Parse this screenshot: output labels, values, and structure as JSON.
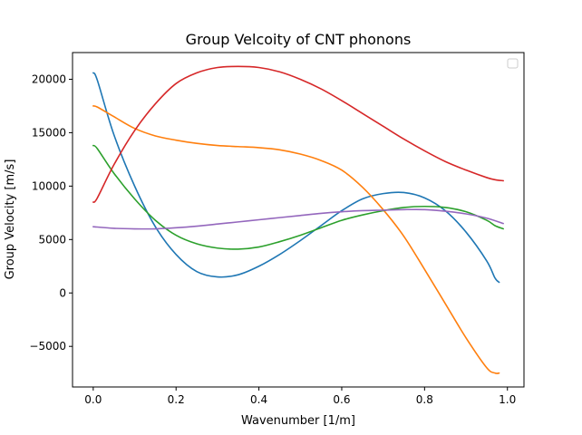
{
  "chart_data": {
    "type": "line",
    "title": "Group Velcoity of CNT phonons",
    "xlabel": "Wavenumber [1/m]",
    "ylabel": "Group Velocity [m/s]",
    "xlim": [
      -0.05,
      1.04
    ],
    "ylim": [
      -8800,
      22500
    ],
    "xticks": [
      0.0,
      0.2,
      0.4,
      0.6,
      0.8,
      1.0
    ],
    "xtick_labels": [
      "0.0",
      "0.2",
      "0.4",
      "0.6",
      "0.8",
      "1.0"
    ],
    "yticks": [
      -5000,
      0,
      5000,
      10000,
      15000,
      20000
    ],
    "ytick_labels": [
      "−5000",
      "0",
      "5000",
      "10000",
      "15000",
      "20000"
    ],
    "grid": false,
    "legend": {
      "placement": "top-right",
      "entries": []
    },
    "series": [
      {
        "color": "#1f77b4",
        "x": [
          0.0,
          0.01,
          0.05,
          0.1,
          0.15,
          0.2,
          0.25,
          0.3,
          0.35,
          0.4,
          0.45,
          0.5,
          0.55,
          0.6,
          0.65,
          0.7,
          0.75,
          0.8,
          0.85,
          0.9,
          0.95,
          0.97,
          0.98
        ],
        "y": [
          20600,
          19900,
          14800,
          10000,
          6200,
          3600,
          2000,
          1500,
          1700,
          2500,
          3600,
          4900,
          6300,
          7700,
          8800,
          9300,
          9400,
          8900,
          7700,
          5700,
          3000,
          1400,
          1000
        ]
      },
      {
        "color": "#ff7f0e",
        "x": [
          0.0,
          0.01,
          0.05,
          0.1,
          0.15,
          0.2,
          0.25,
          0.3,
          0.35,
          0.4,
          0.45,
          0.5,
          0.55,
          0.6,
          0.65,
          0.7,
          0.75,
          0.8,
          0.85,
          0.9,
          0.95,
          0.97,
          0.98
        ],
        "y": [
          17500,
          17400,
          16500,
          15400,
          14700,
          14300,
          14000,
          13800,
          13700,
          13600,
          13400,
          13000,
          12400,
          11500,
          9900,
          7800,
          5300,
          2200,
          -1000,
          -4200,
          -7000,
          -7500,
          -7500
        ]
      },
      {
        "color": "#2ca02c",
        "x": [
          0.0,
          0.01,
          0.05,
          0.1,
          0.15,
          0.2,
          0.25,
          0.3,
          0.35,
          0.4,
          0.45,
          0.5,
          0.55,
          0.6,
          0.65,
          0.7,
          0.75,
          0.8,
          0.85,
          0.9,
          0.95,
          0.97,
          0.99
        ],
        "y": [
          13800,
          13500,
          11200,
          8800,
          6800,
          5400,
          4600,
          4200,
          4100,
          4300,
          4800,
          5400,
          6100,
          6800,
          7300,
          7700,
          8000,
          8100,
          8000,
          7600,
          6800,
          6300,
          6000
        ]
      },
      {
        "color": "#d62728",
        "x": [
          0.0,
          0.01,
          0.05,
          0.1,
          0.15,
          0.2,
          0.25,
          0.3,
          0.35,
          0.4,
          0.45,
          0.5,
          0.55,
          0.6,
          0.65,
          0.7,
          0.75,
          0.8,
          0.85,
          0.9,
          0.95,
          0.97,
          0.99
        ],
        "y": [
          8500,
          8900,
          12000,
          15200,
          17700,
          19600,
          20600,
          21100,
          21200,
          21100,
          20700,
          20000,
          19100,
          18000,
          16800,
          15600,
          14400,
          13300,
          12300,
          11500,
          10800,
          10600,
          10500
        ]
      },
      {
        "color": "#9467bd",
        "x": [
          0.0,
          0.05,
          0.1,
          0.15,
          0.2,
          0.25,
          0.3,
          0.35,
          0.4,
          0.45,
          0.5,
          0.55,
          0.6,
          0.65,
          0.7,
          0.75,
          0.8,
          0.85,
          0.9,
          0.95,
          0.99
        ],
        "y": [
          6200,
          6050,
          6000,
          6000,
          6100,
          6250,
          6450,
          6650,
          6850,
          7050,
          7250,
          7450,
          7600,
          7700,
          7750,
          7800,
          7800,
          7650,
          7400,
          7000,
          6500
        ]
      }
    ]
  }
}
